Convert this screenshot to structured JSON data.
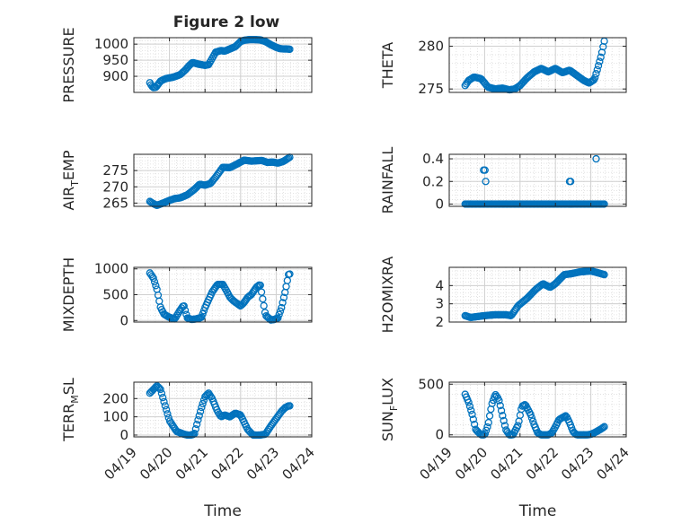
{
  "figure": {
    "title": "Figure 2 low",
    "x_ticks": [
      "04/19",
      "04/20",
      "04/21",
      "04/22",
      "04/23",
      "04/24"
    ],
    "colors": {
      "marker": "#0072BD",
      "axes": "#262626",
      "grid": "#dcdcdc",
      "background": "#ffffff"
    }
  },
  "chart_data": [
    {
      "type": "scatter",
      "title": "Figure 2 low",
      "ylabel": "PRESSURE",
      "ylabel_parts": [
        "PRESSURE"
      ],
      "xlabel": "",
      "xlim": [
        "04/19",
        "04/24"
      ],
      "ylim": [
        850,
        1020
      ],
      "yticks": [
        900,
        950,
        1000
      ],
      "grid": true,
      "x_knots": [
        19.45,
        19.5,
        19.55,
        19.62,
        19.75,
        19.9,
        20.1,
        20.3,
        20.45,
        20.55,
        20.65,
        20.8,
        21.0,
        21.1,
        21.3,
        21.45,
        21.55,
        21.7,
        21.85,
        22.0,
        22.1,
        22.25,
        22.4,
        22.55,
        22.7,
        22.85,
        23.0,
        23.1,
        23.2,
        23.3,
        23.38
      ],
      "y_knots": [
        880,
        870,
        865,
        866,
        885,
        893,
        897,
        905,
        920,
        933,
        943,
        938,
        934,
        936,
        975,
        980,
        978,
        985,
        992,
        1008,
        1012,
        1014,
        1014,
        1013,
        1008,
        998,
        990,
        986,
        985,
        985,
        984
      ],
      "x_range": [
        19.45,
        23.38
      ],
      "n_points": 120
    },
    {
      "type": "scatter",
      "title": "",
      "ylabel": "THETA",
      "ylabel_parts": [
        "THETA"
      ],
      "xlabel": "",
      "xlim": [
        "04/19",
        "04/24"
      ],
      "ylim": [
        274.6,
        281
      ],
      "yticks": [
        275,
        280
      ],
      "grid": true,
      "x_knots": [
        19.45,
        19.55,
        19.7,
        19.9,
        20.1,
        20.3,
        20.5,
        20.7,
        20.85,
        21.0,
        21.2,
        21.4,
        21.6,
        21.8,
        22.0,
        22.2,
        22.4,
        22.6,
        22.8,
        22.95,
        23.1,
        23.2,
        23.3,
        23.38
      ],
      "y_knots": [
        275.4,
        276.0,
        276.4,
        276.2,
        275.2,
        275.0,
        275.1,
        274.9,
        275.0,
        275.4,
        276.3,
        277.0,
        277.4,
        277.0,
        277.4,
        276.9,
        277.2,
        276.6,
        276.0,
        275.7,
        276.1,
        277.5,
        279.0,
        280.6
      ],
      "x_range": [
        19.45,
        23.38
      ],
      "n_points": 120
    },
    {
      "type": "scatter",
      "title": "",
      "ylabel": "AIR_TEMP",
      "ylabel_parts": [
        "AIR",
        "T",
        "EMP"
      ],
      "xlabel": "",
      "xlim": [
        "04/19",
        "04/24"
      ],
      "ylim": [
        264,
        280
      ],
      "yticks": [
        265,
        270,
        275
      ],
      "grid": true,
      "x_knots": [
        19.45,
        19.55,
        19.65,
        19.8,
        20.0,
        20.15,
        20.3,
        20.5,
        20.7,
        20.85,
        21.0,
        21.15,
        21.3,
        21.5,
        21.7,
        21.9,
        22.1,
        22.3,
        22.45,
        22.6,
        22.75,
        22.9,
        23.05,
        23.2,
        23.3,
        23.38
      ],
      "y_knots": [
        265.5,
        264.8,
        264.3,
        264.9,
        265.8,
        266.4,
        266.6,
        267.5,
        269.2,
        270.8,
        270.5,
        271.0,
        273.0,
        276.0,
        275.9,
        277.0,
        278.2,
        277.9,
        278.0,
        278.1,
        277.5,
        277.6,
        277.3,
        277.8,
        278.5,
        279.1
      ],
      "x_range": [
        19.45,
        23.38
      ],
      "n_points": 120
    },
    {
      "type": "scatter",
      "title": "",
      "ylabel": "RAINFALL",
      "ylabel_parts": [
        "RAINFALL"
      ],
      "xlabel": "",
      "xlim": [
        "04/19",
        "04/24"
      ],
      "ylim": [
        -0.02,
        0.44
      ],
      "yticks": [
        0,
        0.2,
        0.4
      ],
      "grid": true,
      "x_knots": [
        19.45,
        23.38
      ],
      "y_knots": [
        0,
        0
      ],
      "x_range": [
        19.45,
        23.38
      ],
      "n_points": 120,
      "extra_points": [
        [
          19.97,
          0.3
        ],
        [
          20.01,
          0.3
        ],
        [
          20.03,
          0.2
        ],
        [
          22.4,
          0.2
        ],
        [
          22.43,
          0.2
        ],
        [
          23.15,
          0.4
        ]
      ]
    },
    {
      "type": "scatter",
      "title": "",
      "ylabel": "MIXDEPTH",
      "ylabel_parts": [
        "MIXDEPTH"
      ],
      "xlabel": "",
      "xlim": [
        "04/19",
        "04/24"
      ],
      "ylim": [
        -30,
        1030
      ],
      "yticks": [
        0,
        500,
        1000
      ],
      "grid": true,
      "x_knots": [
        19.45,
        19.55,
        19.65,
        19.75,
        19.85,
        20.0,
        20.15,
        20.28,
        20.4,
        20.5,
        20.62,
        20.75,
        20.9,
        21.0,
        21.1,
        21.2,
        21.35,
        21.5,
        21.6,
        21.7,
        21.8,
        21.9,
        22.0,
        22.1,
        22.2,
        22.3,
        22.45,
        22.55,
        22.7,
        22.85,
        22.95,
        23.05,
        23.15,
        23.25,
        23.35
      ],
      "y_knots": [
        920,
        820,
        600,
        250,
        120,
        60,
        30,
        180,
        300,
        50,
        20,
        30,
        60,
        250,
        400,
        550,
        700,
        700,
        580,
        450,
        380,
        330,
        280,
        350,
        450,
        500,
        650,
        700,
        100,
        10,
        20,
        50,
        250,
        550,
        900
      ],
      "x_range": [
        19.45,
        23.38
      ],
      "n_points": 120
    },
    {
      "type": "scatter",
      "title": "",
      "ylabel": "H2OMIXRA",
      "ylabel_parts": [
        "H2OMIXRA"
      ],
      "xlabel": "",
      "xlim": [
        "04/19",
        "04/24"
      ],
      "ylim": [
        2,
        5
      ],
      "yticks": [
        2,
        3,
        4
      ],
      "grid": true,
      "x_knots": [
        19.45,
        19.6,
        19.8,
        20.0,
        20.3,
        20.6,
        20.75,
        20.95,
        21.2,
        21.45,
        21.65,
        21.85,
        22.0,
        22.1,
        22.25,
        22.45,
        22.7,
        23.0,
        23.2,
        23.38
      ],
      "y_knots": [
        2.35,
        2.25,
        2.3,
        2.35,
        2.4,
        2.4,
        2.35,
        2.9,
        3.3,
        3.8,
        4.1,
        3.9,
        4.1,
        4.3,
        4.6,
        4.65,
        4.75,
        4.8,
        4.7,
        4.6
      ],
      "x_range": [
        19.45,
        23.38
      ],
      "n_points": 120
    },
    {
      "type": "scatter",
      "title": "",
      "ylabel": "TERR_MSL",
      "ylabel_parts": [
        "TERR",
        "M",
        "SL"
      ],
      "xlabel": "Time",
      "xlim": [
        "04/19",
        "04/24"
      ],
      "ylim": [
        -10,
        290
      ],
      "yticks": [
        0,
        100,
        200
      ],
      "grid": true,
      "x_knots": [
        19.45,
        19.55,
        19.65,
        19.75,
        19.85,
        20.0,
        20.2,
        20.4,
        20.5,
        20.6,
        20.7,
        20.8,
        20.9,
        21.0,
        21.1,
        21.2,
        21.35,
        21.45,
        21.55,
        21.7,
        21.85,
        22.0,
        22.1,
        22.2,
        22.35,
        22.45,
        22.55,
        22.7,
        22.85,
        23.0,
        23.15,
        23.25,
        23.35
      ],
      "y_knots": [
        230,
        250,
        270,
        250,
        180,
        80,
        20,
        5,
        0,
        0,
        5,
        80,
        150,
        210,
        230,
        200,
        130,
        100,
        110,
        100,
        120,
        110,
        70,
        30,
        0,
        0,
        0,
        5,
        50,
        90,
        130,
        150,
        160
      ],
      "x_range": [
        19.45,
        23.38
      ],
      "n_points": 120
    },
    {
      "type": "scatter",
      "title": "",
      "ylabel": "SUN_FLUX",
      "ylabel_parts": [
        "SUN",
        "F",
        "LUX"
      ],
      "xlabel": "Time",
      "xlim": [
        "04/19",
        "04/24"
      ],
      "ylim": [
        -20,
        520
      ],
      "yticks": [
        0,
        500
      ],
      "grid": true,
      "x_knots": [
        19.45,
        19.55,
        19.65,
        19.75,
        19.9,
        20.0,
        20.1,
        20.2,
        20.3,
        20.4,
        20.5,
        20.6,
        20.7,
        20.8,
        20.95,
        21.05,
        21.15,
        21.3,
        21.4,
        21.5,
        21.6,
        21.7,
        21.8,
        21.9,
        22.0,
        22.1,
        22.2,
        22.3,
        22.4,
        22.5,
        22.6,
        22.7,
        22.8,
        22.9,
        23.0,
        23.1,
        23.2,
        23.3,
        23.38
      ],
      "y_knots": [
        400,
        320,
        200,
        50,
        0,
        0,
        100,
        300,
        400,
        350,
        200,
        50,
        0,
        0,
        100,
        280,
        300,
        200,
        100,
        20,
        0,
        0,
        0,
        20,
        80,
        150,
        170,
        190,
        120,
        30,
        0,
        0,
        0,
        0,
        5,
        20,
        40,
        60,
        80
      ],
      "x_range": [
        19.45,
        23.38
      ],
      "n_points": 120
    }
  ]
}
